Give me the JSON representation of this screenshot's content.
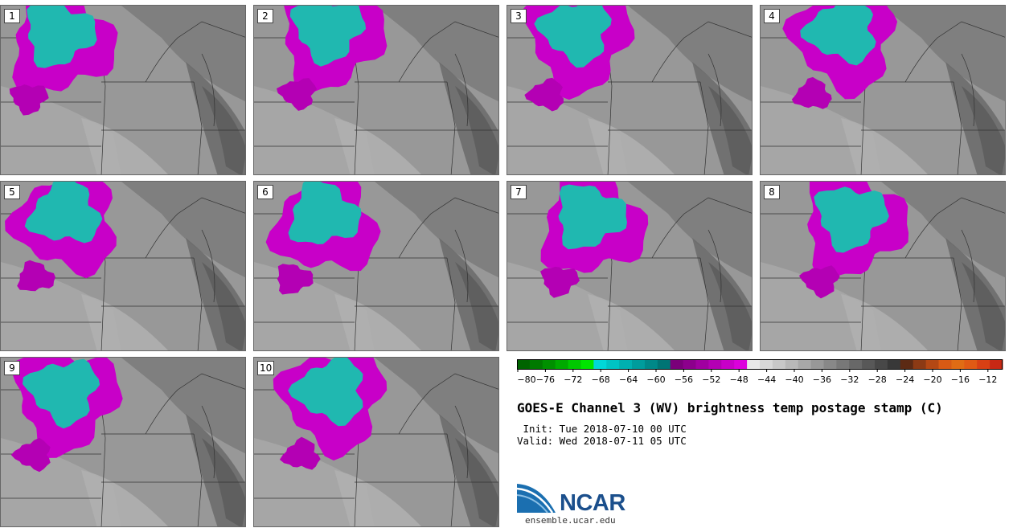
{
  "chart_data": {
    "type": "heatmap",
    "title": "GOES-E Channel 3 (WV) brightness temp postage stamp (C)",
    "init": " Init: Tue 2018-07-10 00 UTC",
    "valid": "Valid: Wed 2018-07-11 05 UTC",
    "members": [
      "1",
      "2",
      "3",
      "4",
      "5",
      "6",
      "7",
      "8",
      "9",
      "10"
    ],
    "colorbar": {
      "min": -80,
      "max": -10,
      "step": 2,
      "ticks": [
        -80,
        -76,
        -72,
        -68,
        -64,
        -60,
        -56,
        -52,
        -48,
        -44,
        -40,
        -36,
        -32,
        -28,
        -24,
        -20,
        -16,
        -12
      ],
      "tick_labels": [
        "−80",
        "−76",
        "−72",
        "−68",
        "−64",
        "−60",
        "−56",
        "−52",
        "−48",
        "−44",
        "−40",
        "−36",
        "−32",
        "−28",
        "−24",
        "−20",
        "−16",
        "−12"
      ],
      "colors": [
        "#006400",
        "#007a00",
        "#009000",
        "#00aa00",
        "#00c800",
        "#00e600",
        "#00d8d8",
        "#00c4c4",
        "#00b0b0",
        "#009c9c",
        "#008888",
        "#007474",
        "#7a007a",
        "#8c008c",
        "#a000a0",
        "#b400b4",
        "#c800c8",
        "#dc00dc",
        "#e8e8e8",
        "#d8d8d8",
        "#c8c8c8",
        "#b8b8b8",
        "#a8a8a8",
        "#989898",
        "#888888",
        "#787878",
        "#686868",
        "#585858",
        "#484848",
        "#383838",
        "#5c2a14",
        "#8c3a14",
        "#b44814",
        "#d85a14",
        "#e06c14",
        "#e05a14",
        "#d84014",
        "#c82814"
      ]
    }
  },
  "logo": {
    "name": "NCAR",
    "url": "ensemble.ucar.edu"
  }
}
